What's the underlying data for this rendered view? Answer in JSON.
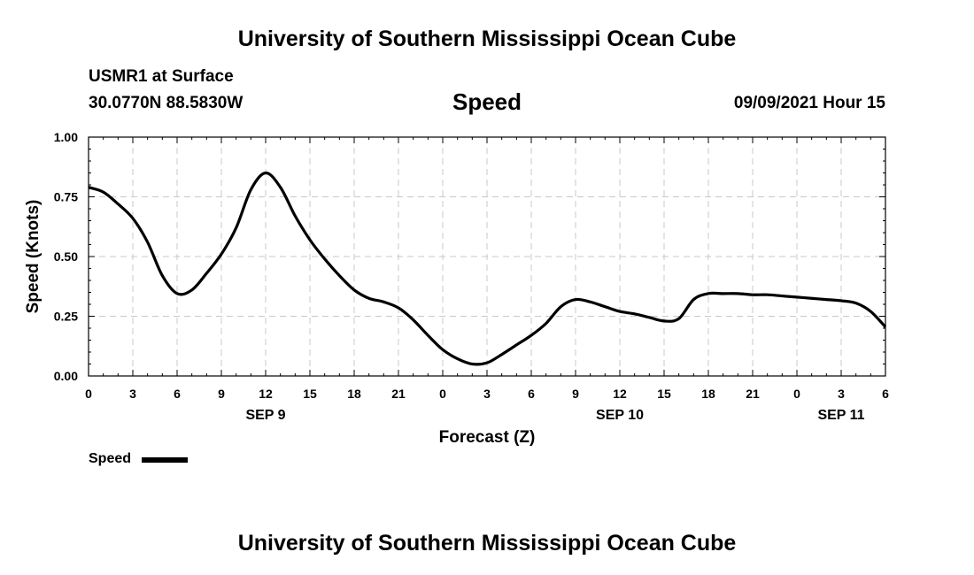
{
  "header": {
    "title": "University of Southern Mississippi Ocean Cube",
    "station": "USMR1 at Surface",
    "coords": "30.0770N  88.5830W",
    "variable": "Speed",
    "valid_time": "09/09/2021 Hour 15"
  },
  "footer": {
    "title": "University of Southern Mississippi Ocean Cube"
  },
  "legend": {
    "label": "Speed",
    "color": "#000000"
  },
  "chart_data": {
    "type": "line",
    "title": "Speed",
    "xlabel": "Forecast (Z)",
    "ylabel": "Speed (Knots)",
    "xlim": [
      0,
      54
    ],
    "ylim": [
      0,
      1
    ],
    "x_ticks": [
      0,
      3,
      6,
      9,
      12,
      15,
      18,
      21,
      24,
      27,
      30,
      33,
      36,
      39,
      42,
      45,
      48,
      51,
      54
    ],
    "x_tick_labels": [
      "0",
      "3",
      "6",
      "9",
      "12",
      "15",
      "18",
      "21",
      "0",
      "3",
      "6",
      "9",
      "12",
      "15",
      "18",
      "21",
      "0",
      "3",
      "6"
    ],
    "y_ticks": [
      0,
      0.25,
      0.5,
      0.75,
      1.0
    ],
    "y_tick_labels": [
      "0.00",
      "0.25",
      "0.50",
      "0.75",
      "1.00"
    ],
    "date_labels": [
      {
        "label": "SEP 9",
        "x": 12
      },
      {
        "label": "SEP 10",
        "x": 36
      },
      {
        "label": "SEP 11",
        "x": 51
      }
    ],
    "grid": true,
    "legend_position": "bottom-left",
    "series": [
      {
        "name": "Speed",
        "color": "#000000",
        "x": [
          0,
          1,
          2,
          3,
          4,
          5,
          6,
          7,
          8,
          9,
          10,
          11,
          12,
          13,
          14,
          15,
          16,
          17,
          18,
          19,
          20,
          21,
          22,
          23,
          24,
          25,
          26,
          27,
          28,
          29,
          30,
          31,
          32,
          33,
          34,
          35,
          36,
          37,
          38,
          39,
          40,
          41,
          42,
          43,
          44,
          45,
          46,
          47,
          48,
          49,
          50,
          51,
          52,
          53,
          54
        ],
        "values": [
          0.79,
          0.77,
          0.72,
          0.66,
          0.56,
          0.42,
          0.345,
          0.36,
          0.43,
          0.51,
          0.62,
          0.78,
          0.85,
          0.79,
          0.67,
          0.57,
          0.49,
          0.42,
          0.36,
          0.325,
          0.31,
          0.285,
          0.235,
          0.17,
          0.11,
          0.072,
          0.05,
          0.055,
          0.09,
          0.13,
          0.17,
          0.22,
          0.29,
          0.32,
          0.31,
          0.29,
          0.27,
          0.26,
          0.245,
          0.23,
          0.24,
          0.32,
          0.345,
          0.345,
          0.345,
          0.34,
          0.34,
          0.335,
          0.33,
          0.325,
          0.32,
          0.315,
          0.305,
          0.27,
          0.205
        ]
      }
    ]
  }
}
